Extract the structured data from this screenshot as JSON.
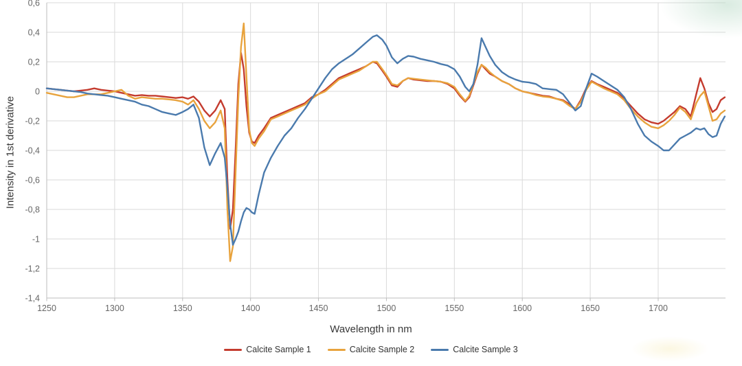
{
  "chart_data": {
    "type": "line",
    "title": "",
    "xlabel": "Wavelength in nm",
    "ylabel": "Intensity in 1st derivative",
    "xlim": [
      1250,
      1750
    ],
    "ylim": [
      -1.4,
      0.6
    ],
    "grid": true,
    "legend_position": "bottom",
    "decimal_separator": ",",
    "x_ticks": {
      "values": [
        1250,
        1300,
        1350,
        1400,
        1450,
        1500,
        1550,
        1600,
        1650,
        1700
      ],
      "labels": [
        "1250",
        "1300",
        "1350",
        "1400",
        "1450",
        "1500",
        "1550",
        "1600",
        "1650",
        "1700"
      ]
    },
    "y_ticks": {
      "values": [
        0.6,
        0.4,
        0.2,
        0,
        -0.2,
        -0.4,
        -0.6,
        -0.8,
        -1,
        -1.2,
        -1.4
      ],
      "labels": [
        "0,6",
        "0,4",
        "0,2",
        "0",
        "-0,2",
        "-0,4",
        "-0,6",
        "-0,8",
        "-1",
        "-1,2",
        "-1,4"
      ]
    },
    "style": {
      "gridline_color": "#dadada",
      "axis_color": "#bdbdbd",
      "tick_label_color": "#666666"
    },
    "x": [
      1250,
      1255,
      1260,
      1265,
      1270,
      1275,
      1280,
      1285,
      1290,
      1295,
      1300,
      1305,
      1310,
      1315,
      1320,
      1325,
      1330,
      1335,
      1340,
      1345,
      1350,
      1354,
      1358,
      1362,
      1366,
      1370,
      1374,
      1378,
      1381,
      1383,
      1385,
      1387,
      1389,
      1391,
      1393,
      1395,
      1397,
      1399,
      1401,
      1403,
      1406,
      1410,
      1415,
      1420,
      1425,
      1430,
      1435,
      1440,
      1445,
      1450,
      1455,
      1460,
      1465,
      1470,
      1475,
      1480,
      1485,
      1490,
      1493,
      1497,
      1500,
      1504,
      1508,
      1512,
      1516,
      1520,
      1525,
      1530,
      1535,
      1540,
      1545,
      1550,
      1554,
      1558,
      1561,
      1564,
      1567,
      1570,
      1573,
      1576,
      1580,
      1585,
      1590,
      1595,
      1600,
      1605,
      1610,
      1615,
      1620,
      1625,
      1630,
      1635,
      1639,
      1643,
      1647,
      1651,
      1655,
      1660,
      1665,
      1670,
      1675,
      1680,
      1685,
      1690,
      1695,
      1700,
      1704,
      1708,
      1712,
      1716,
      1720,
      1724,
      1728,
      1731,
      1734,
      1737,
      1740,
      1743,
      1746,
      1749
    ],
    "series": [
      {
        "name": "Calcite Sample 1",
        "color": "#c43b2e",
        "values": [
          0.02,
          0.015,
          0.01,
          0.005,
          0.0,
          0.005,
          0.01,
          0.02,
          0.01,
          0.005,
          0.0,
          -0.01,
          -0.02,
          -0.03,
          -0.025,
          -0.03,
          -0.03,
          -0.035,
          -0.04,
          -0.045,
          -0.04,
          -0.05,
          -0.035,
          -0.07,
          -0.13,
          -0.17,
          -0.13,
          -0.06,
          -0.12,
          -0.6,
          -0.93,
          -0.8,
          -0.4,
          0.05,
          0.26,
          0.15,
          -0.1,
          -0.28,
          -0.34,
          -0.35,
          -0.3,
          -0.25,
          -0.18,
          -0.16,
          -0.14,
          -0.12,
          -0.1,
          -0.08,
          -0.04,
          -0.02,
          0.01,
          0.05,
          0.09,
          0.11,
          0.13,
          0.15,
          0.17,
          0.2,
          0.19,
          0.14,
          0.1,
          0.04,
          0.03,
          0.07,
          0.09,
          0.08,
          0.075,
          0.07,
          0.07,
          0.065,
          0.05,
          0.02,
          -0.03,
          -0.07,
          -0.04,
          0.04,
          0.12,
          0.18,
          0.15,
          0.12,
          0.1,
          0.07,
          0.05,
          0.02,
          0.0,
          -0.01,
          -0.02,
          -0.03,
          -0.035,
          -0.05,
          -0.06,
          -0.09,
          -0.12,
          -0.06,
          0.02,
          0.07,
          0.05,
          0.03,
          0.01,
          -0.01,
          -0.05,
          -0.1,
          -0.15,
          -0.19,
          -0.21,
          -0.22,
          -0.2,
          -0.17,
          -0.14,
          -0.1,
          -0.12,
          -0.17,
          -0.02,
          0.09,
          0.02,
          -0.08,
          -0.14,
          -0.12,
          -0.06,
          -0.04
        ]
      },
      {
        "name": "Calcite Sample 2",
        "color": "#e8a33d",
        "values": [
          -0.01,
          -0.02,
          -0.03,
          -0.04,
          -0.04,
          -0.03,
          -0.02,
          -0.02,
          -0.02,
          -0.01,
          0.0,
          0.01,
          -0.03,
          -0.05,
          -0.04,
          -0.045,
          -0.05,
          -0.05,
          -0.055,
          -0.06,
          -0.07,
          -0.09,
          -0.06,
          -0.12,
          -0.2,
          -0.25,
          -0.21,
          -0.13,
          -0.25,
          -0.8,
          -1.15,
          -1.05,
          -0.55,
          -0.05,
          0.3,
          0.46,
          0.1,
          -0.26,
          -0.35,
          -0.37,
          -0.32,
          -0.27,
          -0.19,
          -0.17,
          -0.15,
          -0.13,
          -0.11,
          -0.09,
          -0.05,
          -0.02,
          0.0,
          0.04,
          0.08,
          0.1,
          0.12,
          0.14,
          0.17,
          0.2,
          0.2,
          0.15,
          0.11,
          0.05,
          0.04,
          0.07,
          0.09,
          0.085,
          0.08,
          0.075,
          0.07,
          0.065,
          0.055,
          0.03,
          -0.02,
          -0.065,
          -0.03,
          0.05,
          0.13,
          0.18,
          0.16,
          0.13,
          0.1,
          0.07,
          0.05,
          0.02,
          0.0,
          -0.01,
          -0.025,
          -0.035,
          -0.04,
          -0.05,
          -0.065,
          -0.1,
          -0.12,
          -0.07,
          0.01,
          0.065,
          0.045,
          0.02,
          0.0,
          -0.02,
          -0.06,
          -0.12,
          -0.17,
          -0.21,
          -0.24,
          -0.25,
          -0.23,
          -0.2,
          -0.16,
          -0.11,
          -0.14,
          -0.19,
          -0.08,
          -0.03,
          0.0,
          -0.1,
          -0.2,
          -0.19,
          -0.15,
          -0.13
        ]
      },
      {
        "name": "Calcite Sample 3",
        "color": "#4a7aad",
        "values": [
          0.02,
          0.015,
          0.01,
          0.005,
          0.0,
          -0.005,
          -0.015,
          -0.02,
          -0.025,
          -0.03,
          -0.04,
          -0.05,
          -0.06,
          -0.07,
          -0.09,
          -0.1,
          -0.12,
          -0.14,
          -0.15,
          -0.16,
          -0.14,
          -0.12,
          -0.09,
          -0.18,
          -0.38,
          -0.5,
          -0.42,
          -0.35,
          -0.45,
          -0.65,
          -0.9,
          -1.04,
          -1.0,
          -0.95,
          -0.88,
          -0.82,
          -0.79,
          -0.8,
          -0.82,
          -0.83,
          -0.7,
          -0.55,
          -0.45,
          -0.37,
          -0.3,
          -0.25,
          -0.18,
          -0.12,
          -0.05,
          0.02,
          0.09,
          0.15,
          0.19,
          0.22,
          0.25,
          0.29,
          0.33,
          0.37,
          0.38,
          0.35,
          0.31,
          0.23,
          0.19,
          0.22,
          0.24,
          0.235,
          0.22,
          0.21,
          0.2,
          0.185,
          0.175,
          0.15,
          0.1,
          0.03,
          0.0,
          0.05,
          0.18,
          0.36,
          0.3,
          0.24,
          0.18,
          0.13,
          0.1,
          0.08,
          0.065,
          0.06,
          0.05,
          0.02,
          0.015,
          0.01,
          -0.02,
          -0.08,
          -0.13,
          -0.1,
          0.02,
          0.12,
          0.1,
          0.07,
          0.04,
          0.01,
          -0.04,
          -0.12,
          -0.22,
          -0.3,
          -0.34,
          -0.37,
          -0.4,
          -0.4,
          -0.36,
          -0.32,
          -0.3,
          -0.28,
          -0.25,
          -0.26,
          -0.25,
          -0.29,
          -0.31,
          -0.3,
          -0.22,
          -0.17
        ]
      }
    ]
  },
  "decor": {
    "corner_glow_color": "#bbdbc8",
    "watermark_blob_color": "#faf3d2"
  }
}
